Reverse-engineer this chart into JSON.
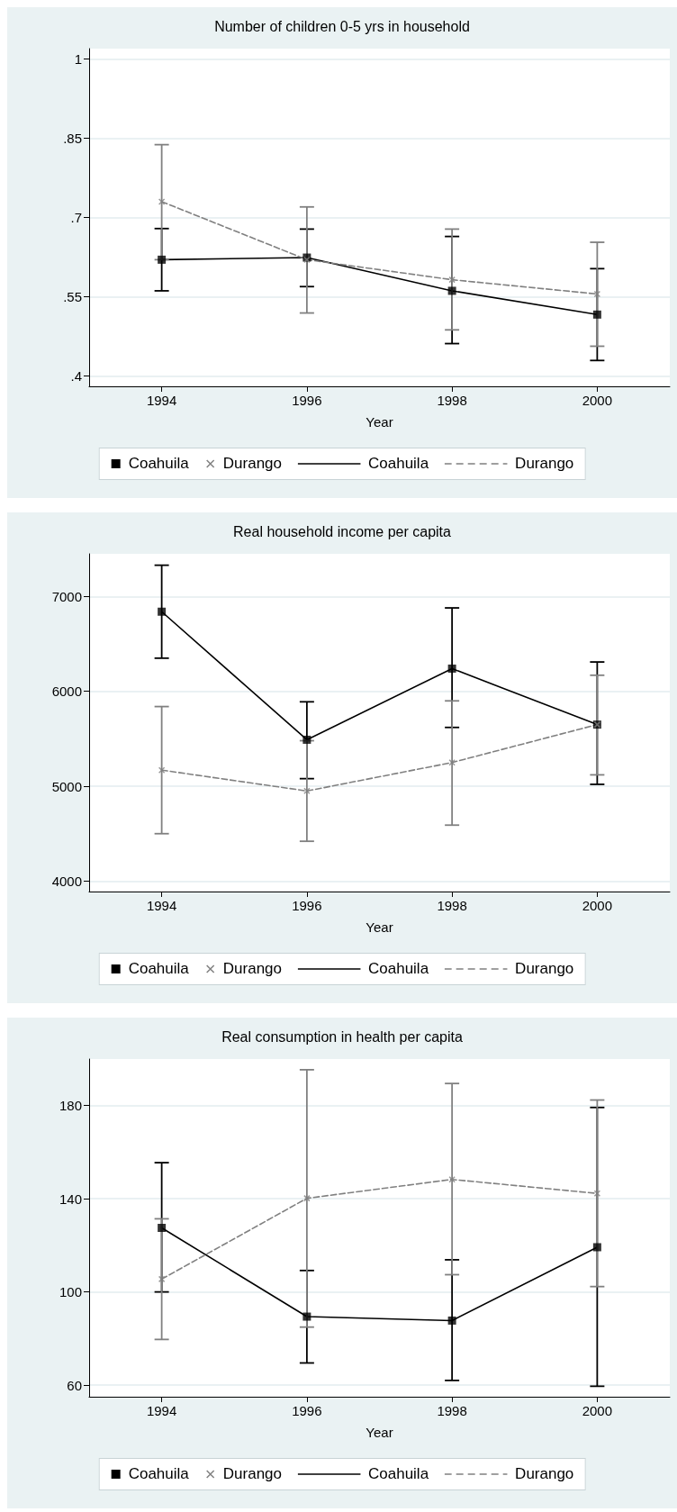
{
  "chart_data": [
    {
      "type": "line",
      "title": "Number of children 0-5 yrs in household",
      "xlabel": "Year",
      "x": [
        1994,
        1996,
        1998,
        2000
      ],
      "xlim": [
        1993,
        2001
      ],
      "xticks": [
        1994,
        1996,
        1998,
        2000
      ],
      "ylim": [
        0.38,
        1.02
      ],
      "yticks": [
        {
          "value": 0.4,
          "label": ".4"
        },
        {
          "value": 0.55,
          "label": ".55"
        },
        {
          "value": 0.7,
          "label": ".7"
        },
        {
          "value": 0.85,
          "label": ".85"
        },
        {
          "value": 1,
          "label": "1"
        }
      ],
      "grid": "y",
      "legend": "bottom",
      "series": [
        {
          "name": "Coahuila",
          "type": "scatter",
          "marker": "square",
          "color": "#000000",
          "values": [
            0.62,
            0.624,
            0.561,
            0.516
          ],
          "errors": [
            [
              0.561,
              0.679
            ],
            [
              0.569,
              0.678
            ],
            [
              0.461,
              0.664
            ],
            [
              0.429,
              0.603
            ]
          ]
        },
        {
          "name": "Durango",
          "type": "scatter",
          "marker": "cross",
          "color": "#808080",
          "values": [
            0.73,
            0.62,
            0.582,
            0.555
          ],
          "errors": [
            [
              0.62,
              0.838
            ],
            [
              0.519,
              0.72
            ],
            [
              0.487,
              0.678
            ],
            [
              0.456,
              0.653
            ]
          ]
        },
        {
          "name": "Coahuila",
          "marker": "none",
          "line_style": "solid",
          "color": "#000000",
          "values": [
            0.62,
            0.624,
            0.561,
            0.516
          ]
        },
        {
          "name": "Durango",
          "marker": "none",
          "line_style": "dashed",
          "color": "#808080",
          "values": [
            0.73,
            0.62,
            0.582,
            0.555
          ]
        }
      ]
    },
    {
      "type": "line",
      "title": "Real household income per capita",
      "xlabel": "Year",
      "x": [
        1994,
        1996,
        1998,
        2000
      ],
      "xlim": [
        1993,
        2001
      ],
      "xticks": [
        1994,
        1996,
        1998,
        2000
      ],
      "ylim": [
        3890,
        7450
      ],
      "yticks": [
        4000,
        5000,
        6000,
        7000
      ],
      "grid": "y",
      "legend": "bottom",
      "series": [
        {
          "name": "Coahuila",
          "type": "scatter",
          "marker": "square",
          "color": "#000000",
          "values": [
            6840,
            5490,
            6240,
            5650
          ],
          "errors": [
            [
              6350,
              7330
            ],
            [
              5080,
              5890
            ],
            [
              5620,
              6880
            ],
            [
              5020,
              6310
            ]
          ]
        },
        {
          "name": "Durango",
          "type": "scatter",
          "marker": "cross",
          "color": "#808080",
          "values": [
            5170,
            4950,
            5250,
            5650
          ],
          "errors": [
            [
              4500,
              5840
            ],
            [
              4420,
              5480
            ],
            [
              4590,
              5900
            ],
            [
              5120,
              6170
            ]
          ]
        },
        {
          "name": "Coahuila",
          "marker": "none",
          "line_style": "solid",
          "color": "#000000",
          "values": [
            6840,
            5490,
            6240,
            5650
          ]
        },
        {
          "name": "Durango",
          "marker": "none",
          "line_style": "dashed",
          "color": "#808080",
          "values": [
            5170,
            4950,
            5250,
            5650
          ]
        }
      ]
    },
    {
      "type": "line",
      "title": "Real consumption in health per capita",
      "xlabel": "Year",
      "x": [
        1994,
        1996,
        1998,
        2000
      ],
      "xlim": [
        1993,
        2001
      ],
      "xticks": [
        1994,
        1996,
        1998,
        2000
      ],
      "ylim": [
        55,
        200
      ],
      "yticks": [
        60,
        100,
        140,
        180
      ],
      "grid": "y",
      "legend": "bottom",
      "series": [
        {
          "name": "Coahuila",
          "type": "scatter",
          "marker": "square",
          "color": "#000000",
          "values": [
            127.5,
            89.4,
            87.7,
            119.2
          ],
          "errors": [
            [
              100,
              155.5
            ],
            [
              69.5,
              109.2
            ],
            [
              62,
              113.8
            ],
            [
              59.5,
              179.2
            ]
          ]
        },
        {
          "name": "Durango",
          "type": "scatter",
          "marker": "cross",
          "color": "#808080",
          "values": [
            105.5,
            140.2,
            148.3,
            142.3
          ],
          "errors": [
            [
              79.6,
              131.4
            ],
            [
              84.9,
              195.4
            ],
            [
              107.4,
              189.5
            ],
            [
              102.3,
              182.4
            ]
          ]
        },
        {
          "name": "Coahuila",
          "marker": "none",
          "line_style": "solid",
          "color": "#000000",
          "values": [
            127.5,
            89.4,
            87.7,
            119.2
          ]
        },
        {
          "name": "Durango",
          "marker": "none",
          "line_style": "dashed",
          "color": "#808080",
          "values": [
            105.5,
            140.2,
            148.3,
            142.3
          ]
        }
      ]
    }
  ]
}
